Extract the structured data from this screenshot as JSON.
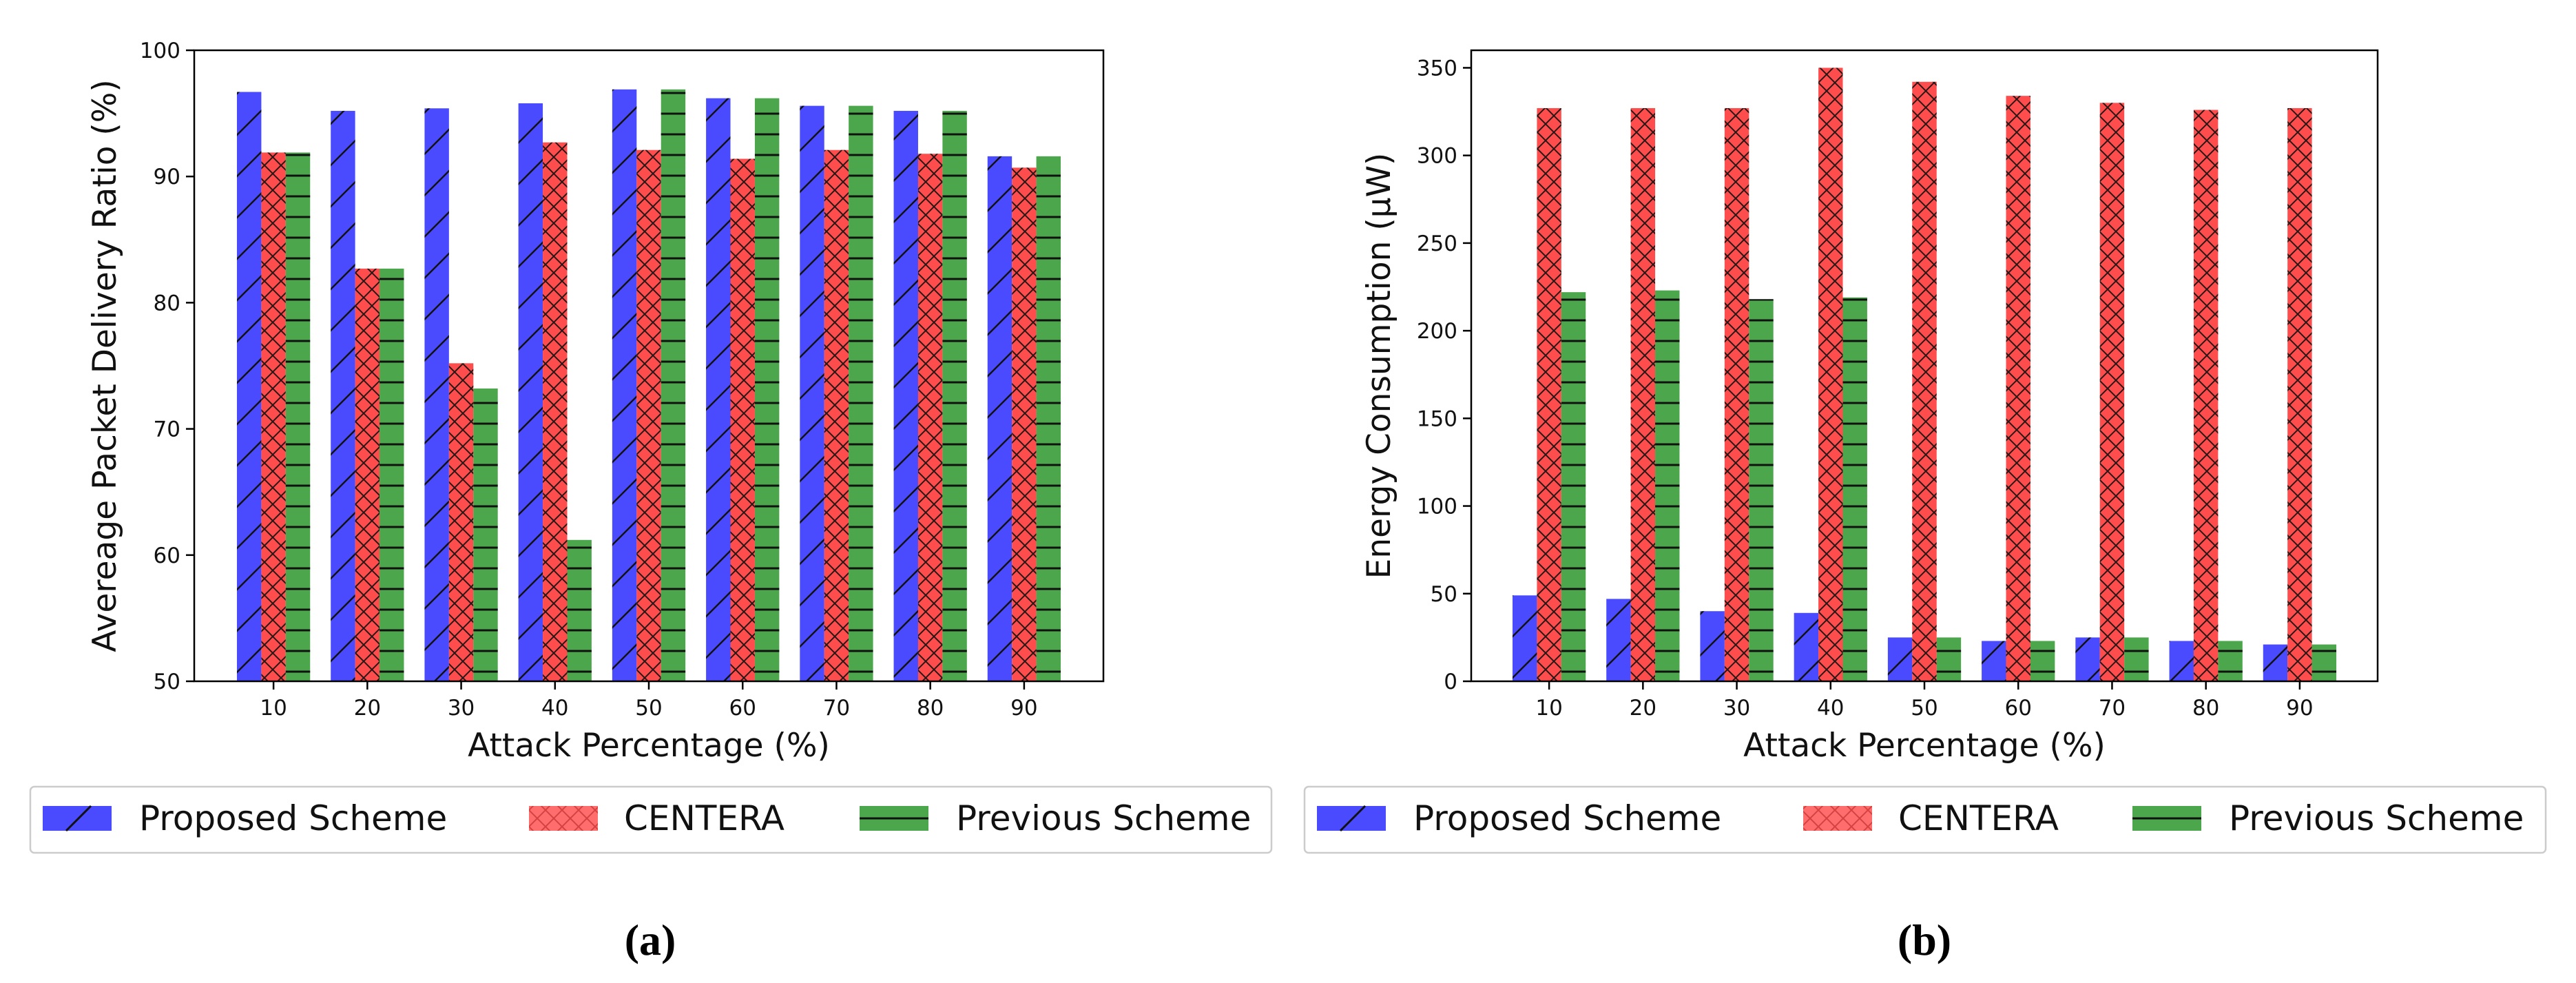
{
  "colors": {
    "proposed": "#4a4aff",
    "centera": "#ff4d4d",
    "previous": "#4ca64c",
    "hatch": "#111111"
  },
  "chart_data": [
    {
      "type": "bar",
      "caption": "(a)",
      "xlabel": "Attack Percentage (%)",
      "ylabel": "Avereage Packet Delivery Ratio (%)",
      "ylim": [
        50,
        100
      ],
      "yticks": [
        "50",
        "60",
        "70",
        "80",
        "90",
        "100"
      ],
      "categories": [
        "10",
        "20",
        "30",
        "40",
        "50",
        "60",
        "70",
        "80",
        "90"
      ],
      "series": [
        {
          "name": "Proposed Scheme",
          "key": "proposed",
          "values": [
            96.7,
            95.2,
            95.4,
            95.8,
            96.9,
            96.2,
            95.6,
            95.2,
            91.6
          ]
        },
        {
          "name": "CENTERA",
          "key": "centera",
          "values": [
            91.9,
            82.7,
            75.2,
            92.7,
            92.1,
            91.4,
            92.1,
            91.8,
            90.7
          ]
        },
        {
          "name": "Previous Scheme",
          "key": "previous",
          "values": [
            91.9,
            82.7,
            73.2,
            61.2,
            96.9,
            96.2,
            95.6,
            95.2,
            91.6
          ]
        }
      ]
    },
    {
      "type": "bar",
      "caption": "(b)",
      "xlabel": "Attack Percentage (%)",
      "ylabel": "Energy Consumption (µW)",
      "ylim": [
        0,
        360
      ],
      "yticks": [
        "0",
        "50",
        "100",
        "150",
        "200",
        "250",
        "300",
        "350"
      ],
      "categories": [
        "10",
        "20",
        "30",
        "40",
        "50",
        "60",
        "70",
        "80",
        "90"
      ],
      "series": [
        {
          "name": "Proposed Scheme",
          "key": "proposed",
          "values": [
            49,
            47,
            40,
            39,
            25,
            23,
            25,
            23,
            21
          ]
        },
        {
          "name": "CENTERA",
          "key": "centera",
          "values": [
            327,
            327,
            327,
            350,
            342,
            334,
            330,
            326,
            327
          ]
        },
        {
          "name": "Previous Scheme",
          "key": "previous",
          "values": [
            222,
            223,
            218,
            219,
            25,
            23,
            25,
            23,
            21
          ]
        }
      ]
    }
  ]
}
